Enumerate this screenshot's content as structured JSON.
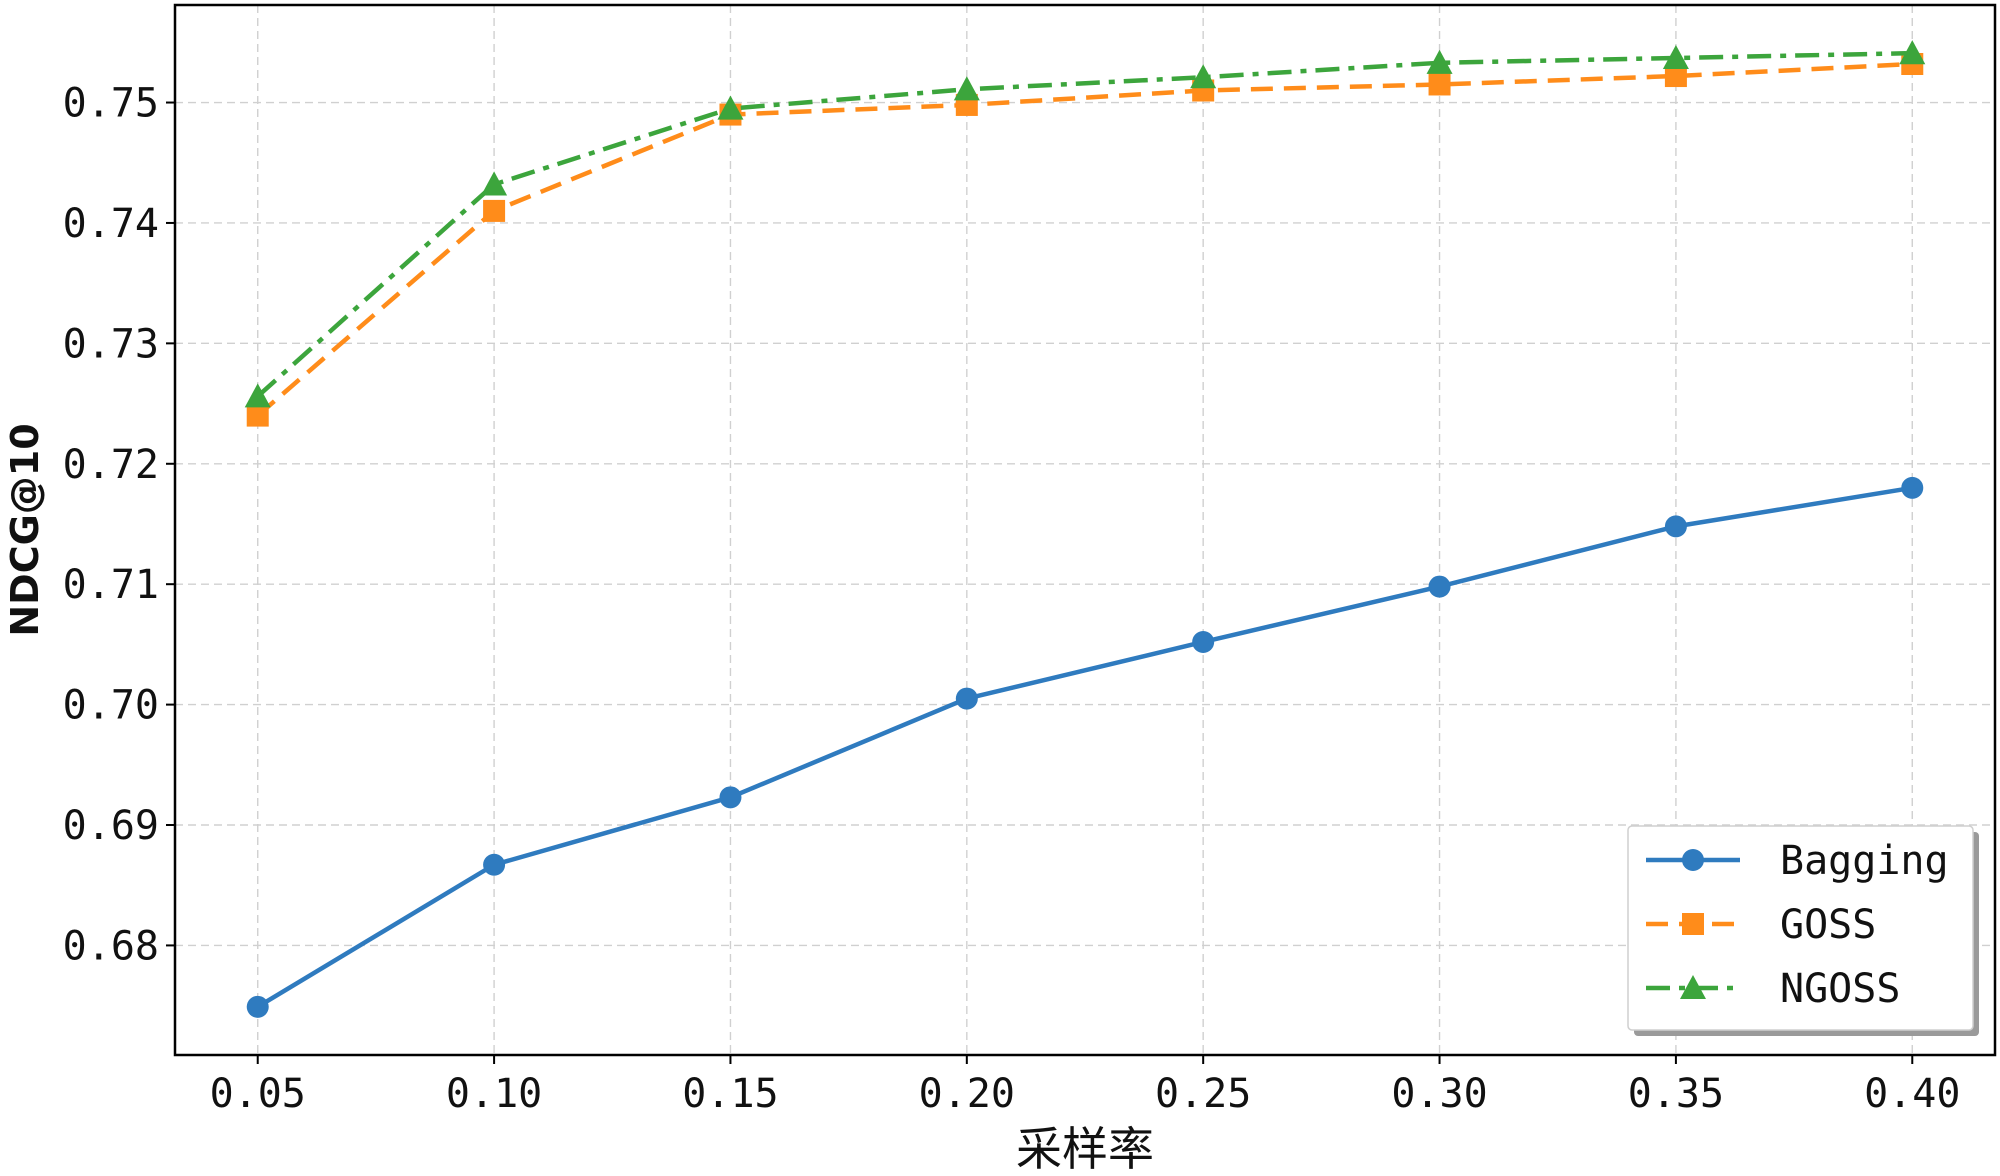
{
  "chart_data": {
    "type": "line",
    "title": "",
    "xlabel": "采样率",
    "ylabel": "NDCG@10",
    "x": [
      0.05,
      0.1,
      0.15,
      0.2,
      0.25,
      0.3,
      0.35,
      0.4
    ],
    "x_tick_labels": [
      "0.05",
      "0.10",
      "0.15",
      "0.20",
      "0.25",
      "0.30",
      "0.35",
      "0.40"
    ],
    "y_ticks": [
      0.68,
      0.69,
      0.7,
      0.71,
      0.72,
      0.73,
      0.74,
      0.75
    ],
    "y_tick_labels": [
      "0.68",
      "0.69",
      "0.70",
      "0.71",
      "0.72",
      "0.73",
      "0.74",
      "0.75"
    ],
    "xlim": [
      0.0325,
      0.4175
    ],
    "ylim": [
      0.6709,
      0.7581
    ],
    "grid": true,
    "legend_position": "bottom-right",
    "series": [
      {
        "name": "Bagging",
        "color": "#2f7bbf",
        "marker": "circle",
        "linestyle": "solid",
        "values": [
          0.6749,
          0.6867,
          0.6923,
          0.7005,
          0.7052,
          0.7098,
          0.7148,
          0.718
        ]
      },
      {
        "name": "GOSS",
        "color": "#ff8c1a",
        "marker": "square",
        "linestyle": "dashed",
        "values": [
          0.724,
          0.741,
          0.749,
          0.7498,
          0.751,
          0.7515,
          0.7522,
          0.7532
        ]
      },
      {
        "name": "NGOSS",
        "color": "#3ca53c",
        "marker": "triangle",
        "linestyle": "dashdot",
        "values": [
          0.7256,
          0.7432,
          0.7495,
          0.7511,
          0.7521,
          0.7533,
          0.7537,
          0.7541
        ]
      }
    ]
  }
}
